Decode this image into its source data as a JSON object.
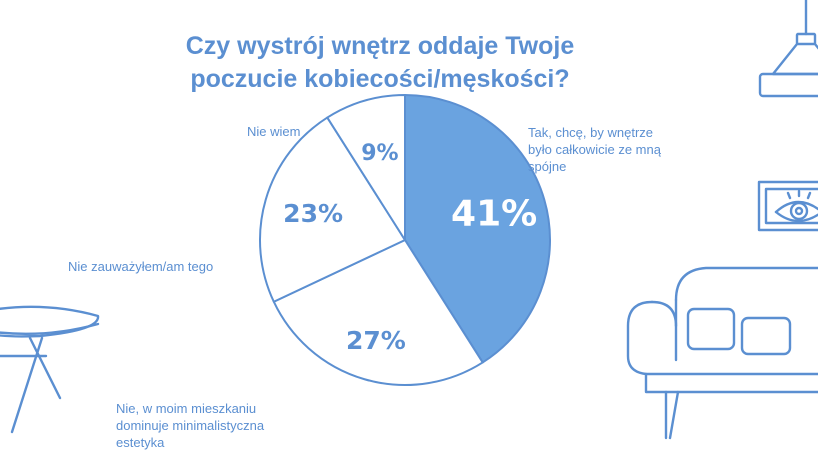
{
  "colors": {
    "accent": "#6aa3e0",
    "line": "#5b8fd1",
    "slice_text_light": "#ffffff",
    "slice_text_dark": "#5b8fd1"
  },
  "chart_data": {
    "type": "pie",
    "title_lines": [
      "Czy wystrój wnętrz oddaje Twoje",
      "poczucie kobiecości/męskości?"
    ],
    "slices": [
      {
        "name_lines": [
          "Tak, chcę, by wnętrze",
          "było całkowicie ze mną",
          "spójne"
        ],
        "value": 41,
        "label": "41%",
        "highlight": true
      },
      {
        "name_lines": [
          "Nie, w moim mieszkaniu",
          "dominuje minimalistyczna",
          "estetyka"
        ],
        "value": 27,
        "label": "27%",
        "highlight": false
      },
      {
        "name_lines": [
          "Nie zauważyłem/am tego"
        ],
        "value": 23,
        "label": "23%",
        "highlight": false
      },
      {
        "name_lines": [
          "Nie wiem"
        ],
        "value": 9,
        "label": "9%",
        "highlight": false
      }
    ],
    "start_angle_deg": 0,
    "direction": "clockwise",
    "legend": "none"
  },
  "decorations": [
    "lamp-icon",
    "picture-frame-eye-icon",
    "sofa-icon",
    "table-icon"
  ]
}
